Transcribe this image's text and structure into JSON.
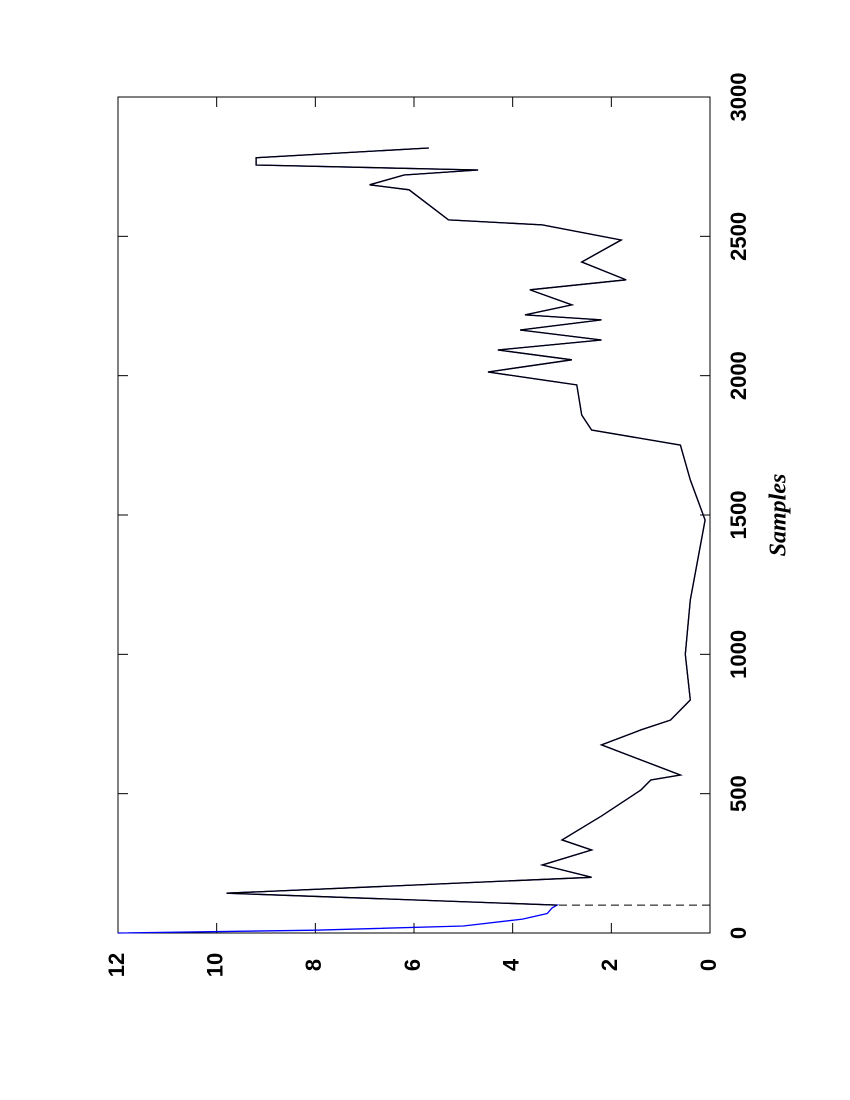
{
  "chart_data": {
    "type": "line",
    "x_label": "Samples",
    "x": [
      0,
      10,
      25,
      50,
      70,
      90,
      100,
      143,
      200,
      244,
      298,
      334,
      420,
      513,
      549,
      567,
      675,
      729,
      764,
      836,
      1000,
      1195,
      1482,
      1626,
      1751,
      1805,
      1859,
      1967,
      2013,
      2057,
      2092,
      2128,
      2164,
      2200,
      2218,
      2254,
      2308,
      2344,
      2408,
      2487,
      2541,
      2559,
      2667,
      2685,
      2720,
      2738,
      2756,
      2782,
      2817
    ],
    "series": [
      {
        "color": "#0000ff",
        "values": [
          12,
          8,
          5,
          3.8,
          3.3,
          3.2,
          3.1,
          9.8,
          2.4,
          3.4,
          2.4,
          3.0,
          2.2,
          1.4,
          1.2,
          0.6,
          2.2,
          1.4,
          0.8,
          0.4,
          0.5,
          0.4,
          0.1,
          0.4,
          0.6,
          2.4,
          2.6,
          2.7,
          4.5,
          2.8,
          4.3,
          2.2,
          3.85,
          2.2,
          3.75,
          2.8,
          3.65,
          1.7,
          2.6,
          1.8,
          3.4,
          5.3,
          6.1,
          6.9,
          6.2,
          4.7,
          9.2,
          9.2,
          5.7
        ]
      },
      {
        "color": "#000000",
        "values": [
          null,
          null,
          null,
          null,
          null,
          null,
          3.1,
          9.8,
          2.4,
          3.4,
          2.4,
          3.0,
          2.2,
          1.4,
          1.2,
          0.6,
          2.2,
          1.4,
          0.8,
          0.4,
          0.5,
          0.4,
          0.1,
          0.4,
          0.6,
          2.4,
          2.6,
          2.7,
          4.5,
          2.8,
          4.3,
          2.2,
          3.85,
          2.2,
          3.75,
          2.8,
          3.65,
          1.7,
          2.6,
          1.8,
          3.4,
          5.3,
          6.1,
          6.9,
          6.2,
          4.7,
          9.2,
          9.2,
          5.7
        ]
      }
    ],
    "vlines": [
      {
        "x": 100,
        "y": [
          0,
          3.1
        ],
        "style": "dashed"
      }
    ],
    "xlim": [
      0,
      3000
    ],
    "xticks": [
      0,
      500,
      1000,
      1500,
      2000,
      2500,
      3000
    ],
    "ylim": [
      0,
      12
    ],
    "yticks": [
      0,
      2,
      4,
      6,
      8,
      10,
      12
    ]
  }
}
